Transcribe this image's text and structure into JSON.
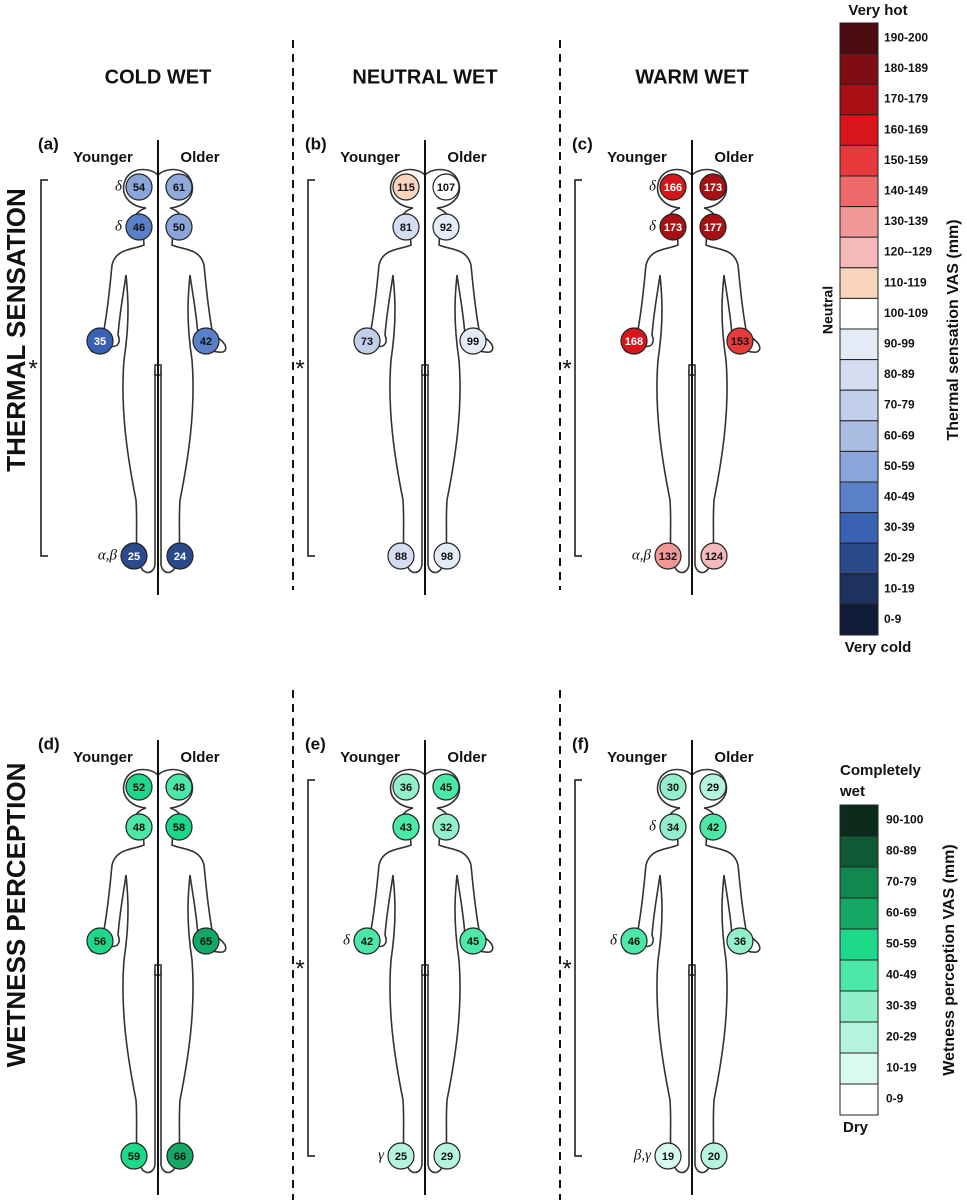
{
  "columns": [
    "COLD WET",
    "NEUTRAL WET",
    "WARM WET"
  ],
  "rows": [
    "THERMAL SENSATION",
    "WETNESS PERCEPTION"
  ],
  "panels": [
    {
      "label": "(a)",
      "younger": "Younger",
      "older": "Older",
      "star": "*",
      "younger_values": [
        54,
        46,
        35,
        25
      ],
      "younger_colors": [
        "#8aa5d9",
        "#5b80ca",
        "#3a62b4",
        "#2b4a8c"
      ],
      "older_values": [
        61,
        50,
        42,
        24
      ],
      "older_colors": [
        "#8fa9db",
        "#8aa5d9",
        "#5b80ca",
        "#2b4a8c"
      ],
      "notes": {
        "head": "δ",
        "neck": "δ",
        "foot": "α,β"
      }
    },
    {
      "label": "(b)",
      "younger": "Younger",
      "older": "Older",
      "star": "*",
      "younger_values": [
        115,
        81,
        73,
        88
      ],
      "younger_colors": [
        "#fad5bd",
        "#d5def1",
        "#c2cfeb",
        "#d5def1"
      ],
      "older_values": [
        107,
        92,
        99,
        98
      ],
      "older_colors": [
        "#ffffff",
        "#e4eaf6",
        "#e4eaf6",
        "#e4eaf6"
      ],
      "notes": {}
    },
    {
      "label": "(c)",
      "younger": "Younger",
      "older": "Older",
      "star": "*",
      "younger_values": [
        166,
        173,
        168,
        132
      ],
      "younger_colors": [
        "#d7151b",
        "#a81016",
        "#d7151b",
        "#f29797"
      ],
      "older_values": [
        173,
        177,
        153,
        124
      ],
      "older_colors": [
        "#a81016",
        "#a81016",
        "#e83a3c",
        "#f6b9b9"
      ],
      "notes": {
        "head": "δ",
        "neck": "δ",
        "foot": "α,β"
      }
    },
    {
      "label": "(d)",
      "younger": "Younger",
      "older": "Older",
      "younger_values": [
        52,
        48,
        56,
        59
      ],
      "younger_colors": [
        "#1ed889",
        "#4ce8a8",
        "#1ed889",
        "#1ed889"
      ],
      "older_values": [
        48,
        58,
        65,
        66
      ],
      "older_colors": [
        "#4ce8a8",
        "#1ed889",
        "#14a865",
        "#14a865"
      ],
      "notes": {}
    },
    {
      "label": "(e)",
      "younger": "Younger",
      "older": "Older",
      "star": "*",
      "younger_values": [
        36,
        43,
        42,
        25
      ],
      "younger_colors": [
        "#91f0cb",
        "#4ce8a8",
        "#4ce8a8",
        "#b5f4dc"
      ],
      "older_values": [
        45,
        32,
        45,
        29
      ],
      "older_colors": [
        "#4ce8a8",
        "#91f0cb",
        "#4ce8a8",
        "#b5f4dc"
      ],
      "notes": {
        "hand": "δ",
        "foot": "γ"
      }
    },
    {
      "label": "(f)",
      "younger": "Younger",
      "older": "Older",
      "star": "*",
      "younger_values": [
        30,
        34,
        46,
        19
      ],
      "younger_colors": [
        "#91f0cb",
        "#91f0cb",
        "#4ce8a8",
        "#d9faee"
      ],
      "older_values": [
        29,
        42,
        36,
        20
      ],
      "older_colors": [
        "#b5f4dc",
        "#4ce8a8",
        "#91f0cb",
        "#b5f4dc"
      ],
      "notes": {
        "neck": "δ",
        "hand": "δ",
        "foot": "β,γ"
      }
    }
  ],
  "thermal_legend": {
    "top": "Very hot",
    "middle": "Neutral",
    "bottom": "Very cold",
    "title": "Thermal sensation VAS (mm)",
    "bins": [
      {
        "label": "190-200",
        "color": "#4a0a0f"
      },
      {
        "label": "180-189",
        "color": "#7f0d13"
      },
      {
        "label": "170-179",
        "color": "#a81016"
      },
      {
        "label": "160-169",
        "color": "#d7151b"
      },
      {
        "label": "150-159",
        "color": "#e83a3c"
      },
      {
        "label": "140-149",
        "color": "#ee6a6a"
      },
      {
        "label": "130-139",
        "color": "#f29797"
      },
      {
        "label": "120--129",
        "color": "#f6b9b9"
      },
      {
        "label": "110-119",
        "color": "#fad5bd"
      },
      {
        "label": "100-109",
        "color": "#ffffff"
      },
      {
        "label": "90-99",
        "color": "#e4eaf6"
      },
      {
        "label": "80-89",
        "color": "#d5def1"
      },
      {
        "label": "70-79",
        "color": "#c2cfeb"
      },
      {
        "label": "60-69",
        "color": "#a9bde3"
      },
      {
        "label": "50-59",
        "color": "#8aa5d9"
      },
      {
        "label": "40-49",
        "color": "#5b80ca"
      },
      {
        "label": "30-39",
        "color": "#3a62b4"
      },
      {
        "label": "20-29",
        "color": "#2b4a8c"
      },
      {
        "label": "10-19",
        "color": "#1e3260"
      },
      {
        "label": "0-9",
        "color": "#111d38"
      }
    ]
  },
  "wetness_legend": {
    "top": [
      "Completely",
      "wet"
    ],
    "bottom": "Dry",
    "title": "Wetness perception VAS (mm)",
    "bins": [
      {
        "label": "90-100",
        "color": "#0d2b1d"
      },
      {
        "label": "80-89",
        "color": "#0f5a35"
      },
      {
        "label": "70-79",
        "color": "#11884f"
      },
      {
        "label": "60-69",
        "color": "#14a865"
      },
      {
        "label": "50-59",
        "color": "#1ed889"
      },
      {
        "label": "40-49",
        "color": "#4ce8a8"
      },
      {
        "label": "30-39",
        "color": "#91f0cb"
      },
      {
        "label": "20-29",
        "color": "#b5f4dc"
      },
      {
        "label": "10-19",
        "color": "#d9faee"
      },
      {
        "label": "0-9",
        "color": "#ffffff"
      }
    ]
  }
}
